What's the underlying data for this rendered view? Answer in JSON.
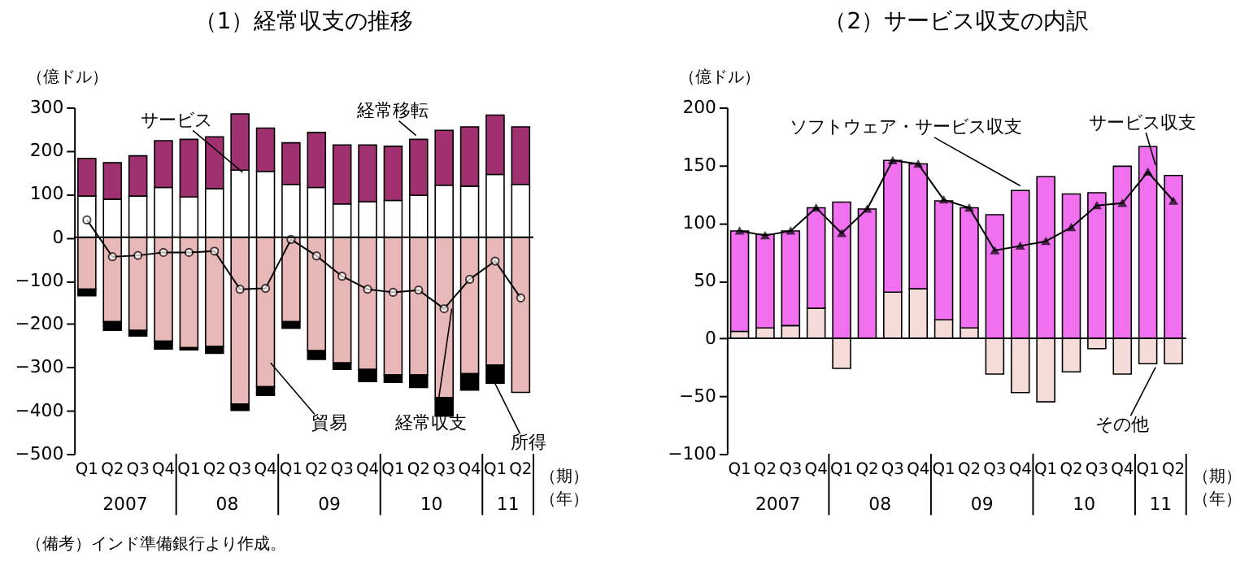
{
  "chart_data": [
    {
      "type": "bar",
      "title": "（1）経常収支の推移",
      "ylabel": "（億ドル）",
      "xlabel": "（期）",
      "categories": [
        "Q1",
        "Q2",
        "Q3",
        "Q4",
        "Q1",
        "Q2",
        "Q3",
        "Q4",
        "Q1",
        "Q2",
        "Q3",
        "Q4",
        "Q1",
        "Q2",
        "Q3",
        "Q4",
        "Q1",
        "Q2"
      ],
      "stacked": true,
      "legend": false,
      "series": [
        {
          "name": "サービス",
          "color": "#ffffff",
          "values": [
            95,
            88,
            95,
            115,
            93,
            112,
            155,
            152,
            122,
            115,
            77,
            82,
            85,
            97,
            120,
            118,
            145,
            122
          ]
        },
        {
          "name": "経常移転",
          "color": "#a03070",
          "values": [
            87,
            84,
            93,
            108,
            133,
            120,
            130,
            100,
            96,
            127,
            136,
            131,
            125,
            129,
            127,
            137,
            137,
            133
          ]
        },
        {
          "name": "貿易",
          "color": "#e8b8b8",
          "values": [
            -120,
            -195,
            -215,
            -240,
            -255,
            -252,
            -385,
            -345,
            -195,
            -262,
            -290,
            -305,
            -318,
            -318,
            -370,
            -315,
            -295,
            -358
          ]
        },
        {
          "name": "所得",
          "color": "#000000",
          "values": [
            -15,
            -20,
            -13,
            -18,
            -5,
            -16,
            -15,
            -20,
            -15,
            -20,
            -15,
            -28,
            -17,
            -29,
            -43,
            -38,
            -42,
            null
          ]
        },
        {
          "name": "経常収支",
          "type": "line",
          "color": "#000000",
          "marker": "circle",
          "values": [
            40,
            -45,
            -42,
            -35,
            -35,
            -32,
            -120,
            -118,
            -5,
            -43,
            -90,
            -120,
            -127,
            -122,
            -165,
            -97,
            -55,
            -140
          ]
        }
      ],
      "ylim": [
        -500,
        300
      ],
      "yticks": [
        -500,
        -400,
        -300,
        -200,
        -100,
        0,
        100,
        200,
        300
      ],
      "ref_lines": [
        {
          "axis": "y",
          "value": 0
        }
      ],
      "annotations": [
        "2007",
        "08",
        "09",
        "10",
        "11",
        "（年）",
        "（備考）インド準備銀行より作成。"
      ]
    },
    {
      "type": "bar",
      "title": "（2）サービス収支の内訳",
      "ylabel": "（億ドル）",
      "xlabel": "（期）",
      "categories": [
        "Q1",
        "Q2",
        "Q3",
        "Q4",
        "Q1",
        "Q2",
        "Q3",
        "Q4",
        "Q1",
        "Q2",
        "Q3",
        "Q4",
        "Q1",
        "Q2",
        "Q3",
        "Q4",
        "Q1",
        "Q2"
      ],
      "stacked": true,
      "legend": false,
      "series": [
        {
          "name": "その他",
          "color": "#f5dcd8",
          "values": [
            6,
            9,
            11,
            26,
            -26,
            0,
            40,
            43,
            16,
            9,
            -31,
            -47,
            -55,
            -29,
            -9,
            -31,
            -22,
            -22
          ]
        },
        {
          "name": "ソフトウェア・サービス収支",
          "color": "#f070f0",
          "values": [
            87,
            81,
            82,
            87,
            118,
            112,
            114,
            108,
            103,
            104,
            107,
            128,
            140,
            125,
            126,
            149,
            166,
            141
          ]
        },
        {
          "name": "サービス収支",
          "type": "line",
          "color": "#000000",
          "marker": "triangle",
          "values": [
            93,
            89,
            93,
            113,
            91,
            112,
            154,
            151,
            120,
            113,
            76,
            80,
            84,
            96,
            115,
            117,
            144,
            119
          ]
        }
      ],
      "ylim": [
        -100,
        200
      ],
      "yticks": [
        -100,
        -50,
        0,
        50,
        100,
        150,
        200
      ],
      "ref_lines": [
        {
          "axis": "y",
          "value": 0
        }
      ],
      "annotations": [
        "2007",
        "08",
        "09",
        "10",
        "11",
        "（年）"
      ]
    }
  ]
}
